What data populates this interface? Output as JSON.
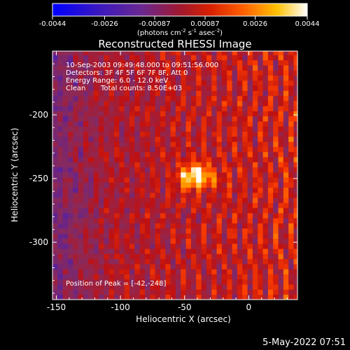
{
  "colorbar": {
    "tick_labels": [
      "-0.0044",
      "-0.0026",
      "-0.00087",
      "0.00087",
      "0.0026",
      "0.0044"
    ],
    "tick_values": [
      -0.0044,
      -0.0026,
      -0.00087,
      0.00087,
      0.0026,
      0.0044
    ],
    "range": [
      -0.0044,
      0.0044
    ],
    "units_label": "(photons cm^-2 s^-1 asec^-2)",
    "colormap_stops": [
      "#0000ff",
      "#5020a8",
      "#8a2a5a",
      "#c01010",
      "#ff4000",
      "#ffb000",
      "#ffffff"
    ]
  },
  "title": "Reconstructed RHESSI Image",
  "annotations": {
    "time_range": "10-Sep-2003 09:49:48.000 to 09:51:56.000",
    "detectors": "Detectors: 3F 4F 5F 6F 7F 8F, Att 0",
    "energy": "Energy Range: 6.0 - 12.0 keV",
    "clean": "Clean",
    "total_counts": "Total counts: 8.50E+03",
    "peak": "Position of Peak = [-42,-248]"
  },
  "footer_date": "5-May-2022 07:51",
  "chart_data": {
    "type": "heatmap",
    "title": "Reconstructed RHESSI Image",
    "xlabel": "Heliocentric X (arcsec)",
    "ylabel": "Heliocentric Y (arcsec)",
    "xlim": [
      -153,
      38
    ],
    "ylim": [
      -345,
      -150
    ],
    "x_ticks": [
      -150,
      -100,
      -50,
      0
    ],
    "x_tick_labels": [
      "-150",
      "-100",
      "-50",
      "0"
    ],
    "y_ticks": [
      -200,
      -250,
      -300
    ],
    "y_tick_labels": [
      "-200",
      "-250",
      "-300"
    ],
    "value_range": [
      -0.0044,
      0.0044
    ],
    "peak_position": [
      -42,
      -248
    ],
    "peak_value": 0.0044,
    "grid": false
  }
}
